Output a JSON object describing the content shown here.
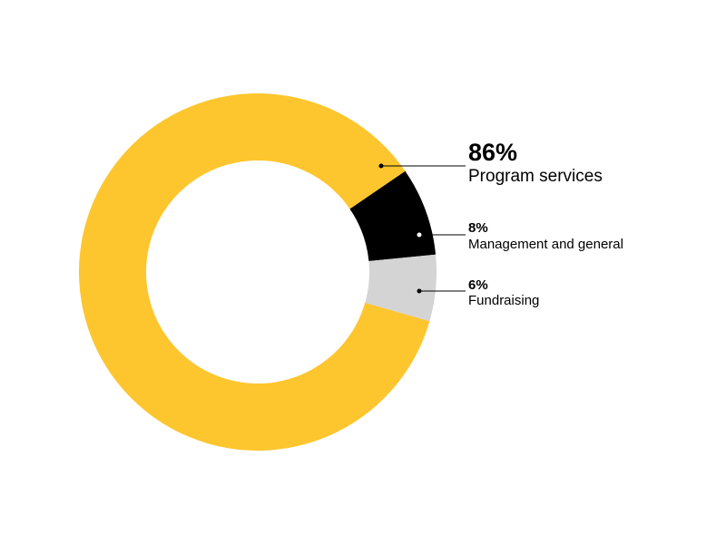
{
  "chart_data": {
    "type": "donut",
    "categories": [
      "Program services",
      "Management and general",
      "Fundraising"
    ],
    "values": [
      86,
      8,
      6
    ],
    "value_labels": [
      "86%",
      "8%",
      "6%"
    ],
    "colors": [
      "#fec62e",
      "#000000",
      "#d4d4d4"
    ]
  }
}
